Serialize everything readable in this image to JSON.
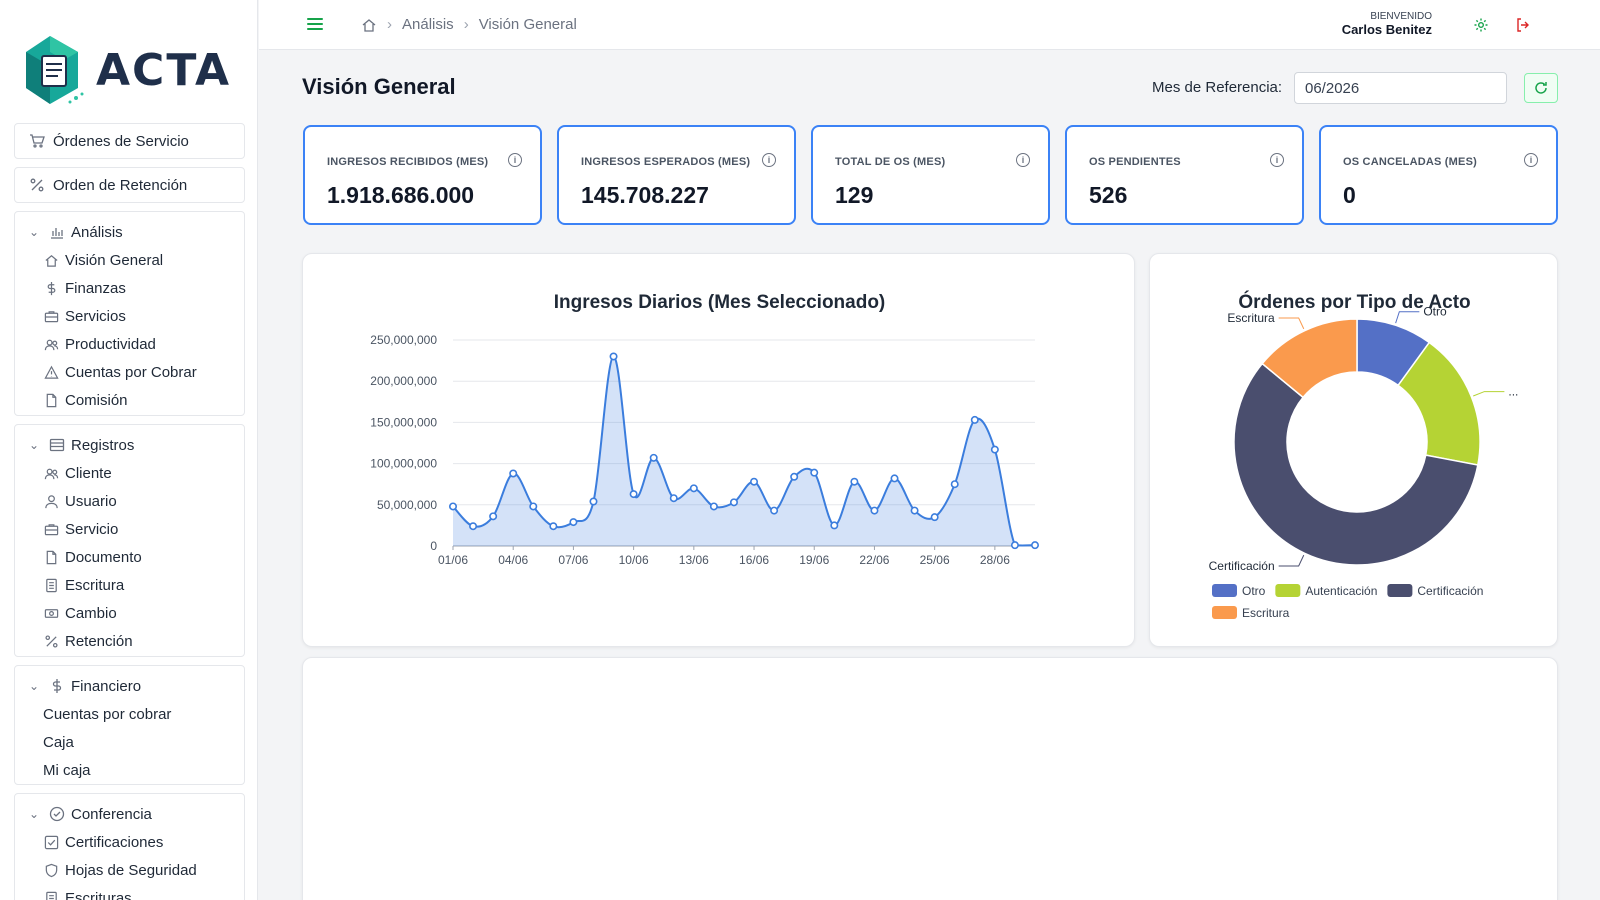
{
  "brand": {
    "name": "ACTA",
    "accent": "#16a34a",
    "primary": "#3b82f6"
  },
  "sidebar": {
    "top_buttons": [
      {
        "label": "Órdenes de Servicio",
        "icon": "cart-icon"
      },
      {
        "label": "Orden de Retención",
        "icon": "percent-icon"
      }
    ],
    "groups": [
      {
        "label": "Análisis",
        "icon": "bar-chart-icon",
        "items": [
          {
            "label": "Visión General",
            "icon": "home-icon"
          },
          {
            "label": "Finanzas",
            "icon": "dollar-icon"
          },
          {
            "label": "Servicios",
            "icon": "briefcase-icon"
          },
          {
            "label": "Productividad",
            "icon": "users-icon"
          },
          {
            "label": "Cuentas por Cobrar",
            "icon": "warning-icon"
          },
          {
            "label": "Comisión",
            "icon": "file-icon"
          }
        ]
      },
      {
        "label": "Registros",
        "icon": "list-icon",
        "items": [
          {
            "label": "Cliente",
            "icon": "users-icon"
          },
          {
            "label": "Usuario",
            "icon": "user-icon"
          },
          {
            "label": "Servicio",
            "icon": "briefcase-icon"
          },
          {
            "label": "Documento",
            "icon": "file-icon"
          },
          {
            "label": "Escritura",
            "icon": "document-icon"
          },
          {
            "label": "Cambio",
            "icon": "money-icon"
          },
          {
            "label": "Retención",
            "icon": "percent-icon"
          }
        ]
      },
      {
        "label": "Financiero",
        "icon": "dollar-icon",
        "items": [
          {
            "label": "Cuentas por cobrar"
          },
          {
            "label": "Caja"
          },
          {
            "label": "Mi caja"
          }
        ]
      },
      {
        "label": "Conferencia",
        "icon": "check-circle-icon",
        "items": [
          {
            "label": "Certificaciones",
            "icon": "check-square-icon"
          },
          {
            "label": "Hojas de Seguridad",
            "icon": "shield-icon"
          },
          {
            "label": "Escrituras",
            "icon": "document-icon"
          }
        ]
      }
    ]
  },
  "topbar": {
    "breadcrumb": [
      "Análisis",
      "Visión General"
    ],
    "welcome_label": "BIENVENIDO",
    "user_name": "Carlos Benitez"
  },
  "main": {
    "title": "Visión General",
    "ref_label": "Mes de Referencia:",
    "ref_value": "06/2026"
  },
  "stats": [
    {
      "label": "INGRESOS RECIBIDOS (MES)",
      "value": "1.918.686.000"
    },
    {
      "label": "INGRESOS ESPERADOS (MES)",
      "value": "145.708.227"
    },
    {
      "label": "TOTAL DE OS (MES)",
      "value": "129"
    },
    {
      "label": "OS PENDIENTES",
      "value": "526"
    },
    {
      "label": "OS CANCELADAS (MES)",
      "value": "0"
    }
  ],
  "chart_data": [
    {
      "type": "area",
      "title": "Ingresos Diarios (Mes Seleccionado)",
      "color": "#3b7ddd",
      "ylim": [
        0,
        250000000
      ],
      "yticks": [
        "0",
        "50,000,000",
        "100,000,000",
        "150,000,000",
        "200,000,000",
        "250,000,000"
      ],
      "xtick_labels": [
        "01/06",
        "04/06",
        "07/06",
        "10/06",
        "13/06",
        "16/06",
        "19/06",
        "22/06",
        "25/06",
        "28/06"
      ],
      "x": [
        "01/06",
        "02/06",
        "03/06",
        "04/06",
        "05/06",
        "06/06",
        "07/06",
        "08/06",
        "09/06",
        "10/06",
        "11/06",
        "12/06",
        "13/06",
        "14/06",
        "15/06",
        "16/06",
        "17/06",
        "18/06",
        "19/06",
        "20/06",
        "21/06",
        "22/06",
        "23/06",
        "24/06",
        "25/06",
        "26/06",
        "27/06",
        "28/06",
        "29/06",
        "30/06"
      ],
      "values": [
        48000000,
        24000000,
        36000000,
        88000000,
        48000000,
        24000000,
        29000000,
        54000000,
        230000000,
        63000000,
        107000000,
        58000000,
        70000000,
        48000000,
        53000000,
        78000000,
        43000000,
        84000000,
        89000000,
        25000000,
        78000000,
        43000000,
        82000000,
        43000000,
        35000000,
        75000000,
        153000000,
        117000000,
        1000000,
        1000000
      ],
      "grid": true
    },
    {
      "type": "pie",
      "title": "Órdenes por Tipo de Acto",
      "labels": [
        "Otro",
        "Autenticación",
        "Certificación",
        "Escritura"
      ],
      "values": [
        10,
        18,
        58,
        14
      ],
      "colors": [
        "#5470c6",
        "#b5d334",
        "#4a4e6e",
        "#fa9a4d"
      ],
      "slice_labels": [
        "Otro",
        "...",
        "Certificación",
        "Escritura"
      ],
      "legend": "bottom"
    }
  ]
}
